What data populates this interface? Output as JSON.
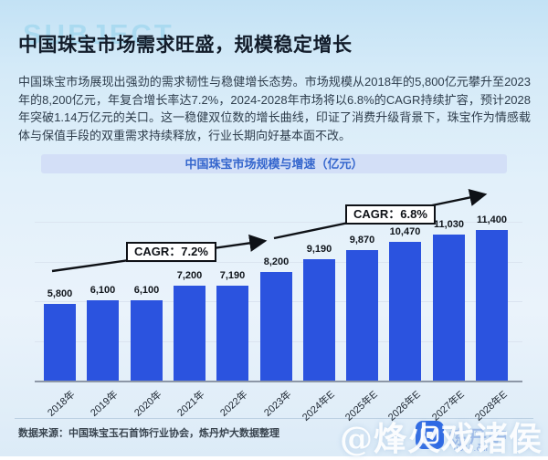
{
  "page": {
    "background_watermark": "SUBJECT",
    "title": "中国珠宝市场需求旺盛，规模稳定增长",
    "intro": "中国珠宝市场展现出强劲的需求韧性与稳健增长态势。市场规模从2018年的5,800亿元攀升至2023年的8,200亿元，年复合增长率达7.2%，2024-2028年市场将以6.8%的CAGR持续扩容，预计2028年突破1.14万亿元的关口。这一稳健双位数的增长曲线，印证了消费升级背景下，珠宝作为情感载体与保值手段的双重需求持续释放，行业长期向好基本面不改。",
    "source_note": "数据来源：中国珠宝玉石首饰行业协会，炼丹炉大数据整理",
    "author_watermark": "@烽火戏诸侯",
    "logo_text": "炼丹炉",
    "logo_url": "u816.cm"
  },
  "chart_data": {
    "type": "bar",
    "title": "中国珠宝市场规模与增速（亿元）",
    "unit": "亿元",
    "categories": [
      "2018年",
      "2019年",
      "2020年",
      "2021年",
      "2022年",
      "2023年",
      "2024年E",
      "2025年E",
      "2026年E",
      "2027年E",
      "2028年E"
    ],
    "values": [
      5800,
      6100,
      6100,
      7200,
      7190,
      8200,
      9190,
      9870,
      10470,
      11030,
      11400
    ],
    "value_labels": [
      "5,800",
      "6,100",
      "6,100",
      "7,200",
      "7,190",
      "8,200",
      "9,190",
      "9,870",
      "10,470",
      "11,030",
      "11,400"
    ],
    "ylim": [
      0,
      12000
    ],
    "gridline_values": [
      3000,
      6000,
      9000,
      12000
    ],
    "grid": true,
    "legend": "none",
    "bar_color": "#2B53DF",
    "annotations": [
      {
        "label": "CAGR：7.2%"
      },
      {
        "label": "CAGR：6.8%"
      }
    ]
  }
}
